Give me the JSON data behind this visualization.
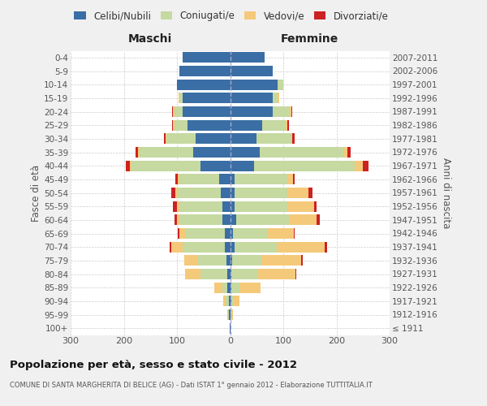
{
  "age_groups": [
    "100+",
    "95-99",
    "90-94",
    "85-89",
    "80-84",
    "75-79",
    "70-74",
    "65-69",
    "60-64",
    "55-59",
    "50-54",
    "45-49",
    "40-44",
    "35-39",
    "30-34",
    "25-29",
    "20-24",
    "15-19",
    "10-14",
    "5-9",
    "0-4"
  ],
  "birth_years": [
    "≤ 1911",
    "1912-1916",
    "1917-1921",
    "1922-1926",
    "1927-1931",
    "1932-1936",
    "1937-1941",
    "1942-1946",
    "1947-1951",
    "1952-1956",
    "1957-1961",
    "1962-1966",
    "1967-1971",
    "1972-1976",
    "1977-1981",
    "1982-1986",
    "1987-1991",
    "1992-1996",
    "1997-2001",
    "2002-2006",
    "2007-2011"
  ],
  "males_celibi": [
    1,
    2,
    3,
    5,
    5,
    7,
    10,
    10,
    15,
    15,
    18,
    20,
    55,
    70,
    65,
    80,
    90,
    90,
    100,
    95,
    90
  ],
  "males_coniugati": [
    0,
    2,
    5,
    10,
    50,
    55,
    80,
    75,
    80,
    80,
    80,
    75,
    130,
    100,
    55,
    25,
    15,
    5,
    0,
    0,
    0
  ],
  "males_vedovi": [
    0,
    2,
    5,
    15,
    30,
    25,
    20,
    10,
    5,
    5,
    5,
    3,
    3,
    3,
    2,
    2,
    2,
    2,
    0,
    0,
    0
  ],
  "males_divorziati": [
    0,
    0,
    0,
    0,
    0,
    0,
    3,
    4,
    5,
    8,
    8,
    5,
    8,
    5,
    2,
    2,
    2,
    0,
    0,
    0,
    0
  ],
  "females_celibi": [
    1,
    1,
    2,
    3,
    3,
    4,
    8,
    5,
    12,
    8,
    8,
    8,
    45,
    55,
    50,
    60,
    80,
    80,
    90,
    80,
    65
  ],
  "females_coniugati": [
    0,
    2,
    5,
    15,
    50,
    55,
    80,
    65,
    100,
    100,
    100,
    100,
    190,
    160,
    65,
    45,
    30,
    10,
    10,
    0,
    0
  ],
  "females_vedovi": [
    0,
    3,
    10,
    40,
    70,
    75,
    90,
    50,
    50,
    50,
    40,
    10,
    15,
    5,
    2,
    2,
    5,
    2,
    0,
    0,
    0
  ],
  "females_divorziati": [
    0,
    0,
    0,
    0,
    2,
    2,
    5,
    2,
    7,
    5,
    7,
    3,
    10,
    7,
    5,
    3,
    2,
    0,
    0,
    0,
    0
  ],
  "colors": {
    "celibi": "#3a6ea5",
    "coniugati": "#c5d9a0",
    "vedovi": "#f5c97a",
    "divorziati": "#cc2222"
  },
  "xlim": 300,
  "title": "Popolazione per età, sesso e stato civile - 2012",
  "subtitle": "COMUNE DI SANTA MARGHERITA DI BELICE (AG) - Dati ISTAT 1° gennaio 2012 - Elaborazione TUTTITALIA.IT",
  "ylabel_left": "Fasce di età",
  "ylabel_right": "Anni di nascita",
  "xlabel_left": "Maschi",
  "xlabel_right": "Femmine",
  "bg_color": "#f0f0f0",
  "plot_bg": "#ffffff"
}
